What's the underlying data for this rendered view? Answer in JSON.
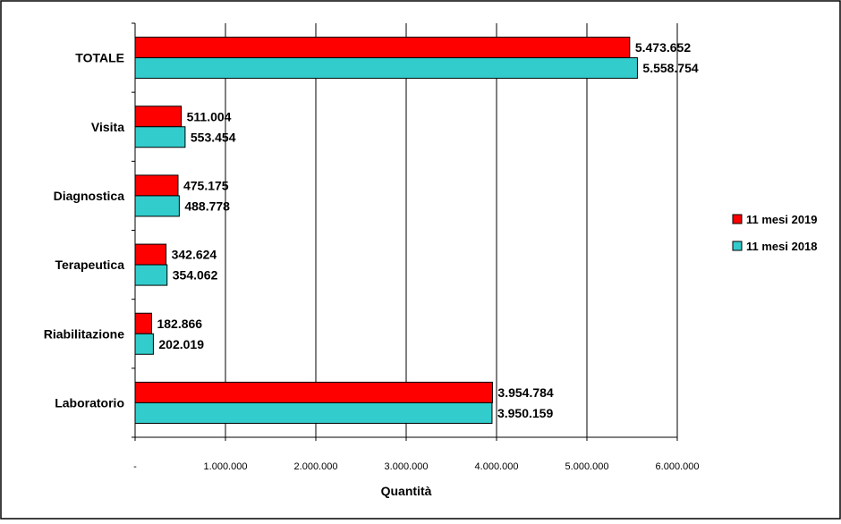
{
  "chart_data": {
    "type": "bar",
    "orientation": "horizontal",
    "categories": [
      "TOTALE",
      "Visita",
      "Diagnostica",
      "Terapeutica",
      "Riabilitazione",
      "Laboratorio"
    ],
    "series": [
      {
        "name": "11 mesi 2019",
        "color": "#ff0000",
        "values": [
          5473652,
          511004,
          475175,
          342624,
          182866,
          3954784
        ],
        "labels": [
          "5.473.652",
          "511.004",
          "475.175",
          "342.624",
          "182.866",
          "3.954.784"
        ]
      },
      {
        "name": "11 mesi 2018",
        "color": "#33cccc",
        "values": [
          5558754,
          553454,
          488778,
          354062,
          202019,
          3950159
        ],
        "labels": [
          "5.558.754",
          "553.454",
          "488.778",
          "354.062",
          "202.019",
          "3.950.159"
        ]
      }
    ],
    "xlabel": "Quantità",
    "ylabel": "",
    "xlim": [
      0,
      6000000
    ],
    "xticks": [
      0,
      1000000,
      2000000,
      3000000,
      4000000,
      5000000,
      6000000
    ],
    "xtick_labels": [
      "-",
      "1.000.000",
      "2.000.000",
      "3.000.000",
      "4.000.000",
      "5.000.000",
      "6.000.000"
    ],
    "grid": "vertical",
    "legend_position": "right"
  }
}
